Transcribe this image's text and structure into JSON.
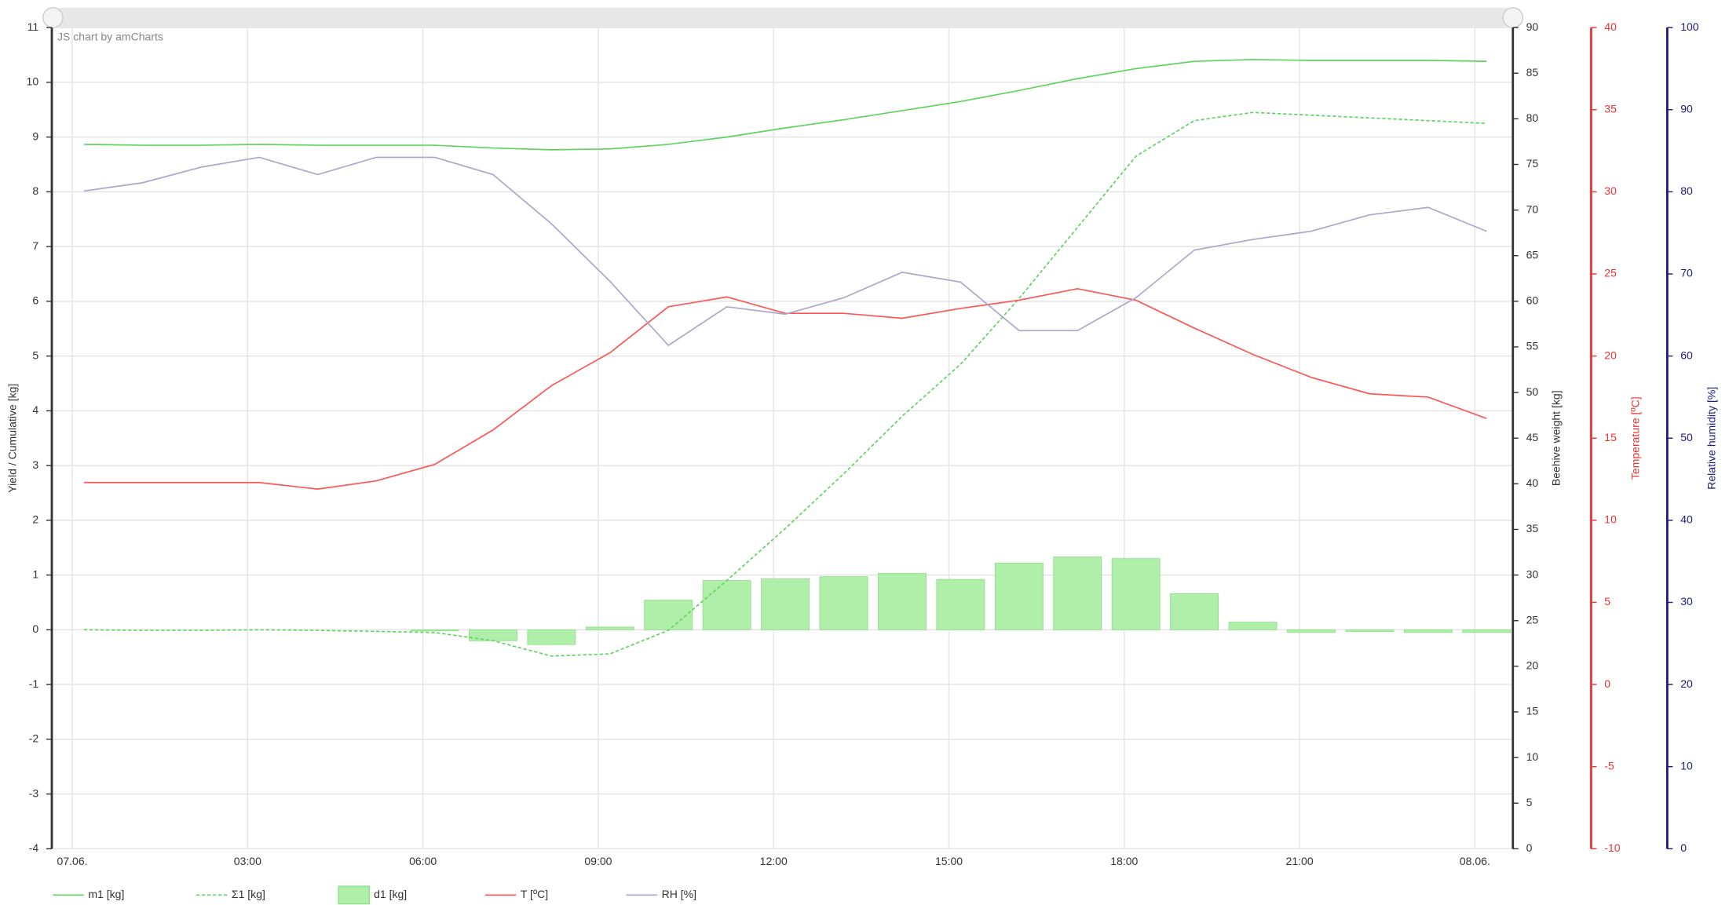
{
  "chart_data": {
    "type": "line",
    "credit": "JS chart by amCharts",
    "xlim": [
      -0.35,
      24.65
    ],
    "xticks": [
      {
        "value": 0,
        "label": "07.06."
      },
      {
        "value": 3,
        "label": "03:00"
      },
      {
        "value": 6,
        "label": "06:00"
      },
      {
        "value": 9,
        "label": "09:00"
      },
      {
        "value": 12,
        "label": "12:00"
      },
      {
        "value": 15,
        "label": "15:00"
      },
      {
        "value": 18,
        "label": "18:00"
      },
      {
        "value": 21,
        "label": "21:00"
      },
      {
        "value": 24,
        "label": "08.06."
      }
    ],
    "grid": true,
    "y_label": "Yield / Cumulative [kg]",
    "ylim": [
      -4,
      11
    ],
    "yticks": [
      -4,
      -3,
      -2,
      -1,
      0,
      1,
      2,
      3,
      4,
      5,
      6,
      7,
      8,
      9,
      10,
      11
    ],
    "y_color": "#333333",
    "y2_label": "Beehive weight [kg]",
    "y2lim": [
      0,
      90
    ],
    "y2ticks": [
      0,
      5,
      10,
      15,
      20,
      25,
      30,
      35,
      40,
      45,
      50,
      55,
      60,
      65,
      70,
      75,
      80,
      85,
      90
    ],
    "y2_color": "#333333",
    "y3_label": "Temperature [ºC]",
    "y3lim": [
      -10,
      40
    ],
    "y3ticks": [
      -10,
      -5,
      0,
      5,
      10,
      15,
      20,
      25,
      30,
      35,
      40
    ],
    "y3_color": "#ee3333",
    "y4_label": "Relative humidity [%]",
    "y4lim": [
      0,
      100
    ],
    "y4ticks": [
      0,
      10,
      20,
      30,
      40,
      50,
      60,
      70,
      80,
      90,
      100
    ],
    "y4_color": "#1a1a80",
    "series": [
      {
        "name": "m1 [kg]",
        "type": "line",
        "color": "#5fd35f",
        "axis": "y2",
        "dash": false,
        "x": [
          0.2,
          1.2,
          2.2,
          3.2,
          4.2,
          5.2,
          6.2,
          7.2,
          8.2,
          9.2,
          10.2,
          11.2,
          12.2,
          13.2,
          14.2,
          15.2,
          16.2,
          17.2,
          18.2,
          19.2,
          20.2,
          21.2,
          22.2,
          23.2,
          24.2
        ],
        "values": [
          77.2,
          77.1,
          77.1,
          77.2,
          77.1,
          77.1,
          77.1,
          76.8,
          76.6,
          76.7,
          77.2,
          78.0,
          79.0,
          79.9,
          80.9,
          81.9,
          83.1,
          84.4,
          85.5,
          86.3,
          86.5,
          86.4,
          86.4,
          86.4,
          86.3
        ]
      },
      {
        "name": "Σ1 [kg]",
        "type": "line",
        "color": "#5fd35f",
        "axis": "y",
        "dash": true,
        "x": [
          0.2,
          1.2,
          2.2,
          3.2,
          4.2,
          5.2,
          6.2,
          7.2,
          8.2,
          9.2,
          10.2,
          11.2,
          12.2,
          13.2,
          14.2,
          15.2,
          16.2,
          17.2,
          18.2,
          19.2,
          20.2,
          21.2,
          22.2,
          23.2,
          24.2
        ],
        "values": [
          0,
          -0.01,
          -0.01,
          0,
          -0.01,
          -0.03,
          -0.05,
          -0.2,
          -0.48,
          -0.44,
          -0.01,
          0.9,
          1.85,
          2.85,
          3.9,
          4.85,
          6.05,
          7.35,
          8.65,
          9.3,
          9.45,
          9.4,
          9.35,
          9.3,
          9.25
        ]
      },
      {
        "name": "d1 [kg]",
        "type": "bar",
        "color": "#b0efaa",
        "axis": "y",
        "dash": false,
        "x": [
          6.2,
          7.2,
          8.2,
          9.2,
          10.2,
          11.2,
          12.2,
          13.2,
          14.2,
          15.2,
          16.2,
          17.2,
          18.2,
          19.2,
          20.2,
          21.2,
          22.2,
          23.2,
          24.2
        ],
        "values": [
          -0.02,
          -0.2,
          -0.27,
          0.05,
          0.54,
          0.9,
          0.93,
          0.97,
          1.03,
          0.92,
          1.22,
          1.33,
          1.3,
          0.66,
          0.14,
          -0.05,
          -0.03,
          -0.05,
          -0.05
        ]
      },
      {
        "name": "T [ºC]",
        "type": "line",
        "color": "#ff5555",
        "axis": "y3",
        "dash": false,
        "x": [
          0.2,
          1.2,
          2.2,
          3.2,
          4.2,
          5.2,
          6.2,
          7.2,
          8.2,
          9.2,
          10.2,
          11.2,
          12.2,
          13.2,
          14.2,
          15.2,
          16.2,
          17.2,
          18.2,
          19.2,
          20.2,
          21.2,
          22.2,
          23.2,
          24.2
        ],
        "values": [
          12.3,
          12.3,
          12.3,
          12.3,
          11.9,
          12.4,
          13.4,
          15.5,
          18.2,
          20.2,
          23.0,
          23.6,
          22.6,
          22.6,
          22.3,
          22.9,
          23.4,
          24.1,
          23.4,
          21.7,
          20.1,
          18.7,
          17.7,
          17.5,
          16.2
        ]
      },
      {
        "name": "RH [%]",
        "type": "line",
        "color": "#aaa6cc",
        "axis": "y4",
        "dash": false,
        "x": [
          0.2,
          1.2,
          2.2,
          3.2,
          4.2,
          5.2,
          6.2,
          7.2,
          8.2,
          9.2,
          10.2,
          11.2,
          12.2,
          13.2,
          14.2,
          15.2,
          16.2,
          17.2,
          18.2,
          19.2,
          20.2,
          21.2,
          22.2,
          23.2,
          24.2
        ],
        "values": [
          80.1,
          81.1,
          83.0,
          84.2,
          82.1,
          84.2,
          84.2,
          82.1,
          76.1,
          69.1,
          61.3,
          66.0,
          65.1,
          67.1,
          70.2,
          69.0,
          63.1,
          63.1,
          67.1,
          72.9,
          74.2,
          75.2,
          77.2,
          78.1,
          75.2
        ]
      }
    ]
  }
}
